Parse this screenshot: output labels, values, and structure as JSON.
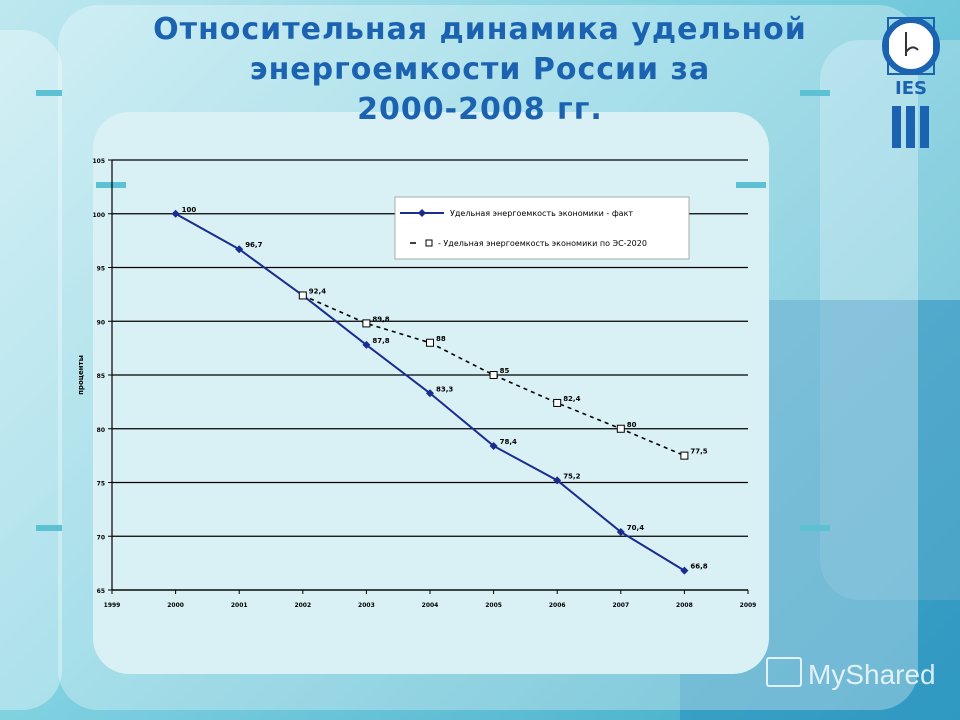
{
  "slide": {
    "title_lines": [
      "Относительная динамика удельной",
      "энергоемкости России за",
      "2000-2008 гг."
    ],
    "logo_text": "IES",
    "watermark": "MyShared"
  },
  "colors": {
    "title": "#1b62b0",
    "series_fact": "#1a2d8f",
    "series_forecast": "#000000"
  },
  "chart_data": {
    "type": "line",
    "ylabel": "проценты",
    "xlim": [
      1999,
      2009
    ],
    "ylim": [
      65,
      105
    ],
    "grid": true,
    "legend_position": "top-right",
    "x_ticks": [
      "1999",
      "2000",
      "2001",
      "2002",
      "2003",
      "2004",
      "2005",
      "2006",
      "2007",
      "2008",
      "2009"
    ],
    "y_ticks": [
      65,
      70,
      75,
      80,
      85,
      90,
      95,
      100,
      105
    ],
    "series": [
      {
        "name": "Удельная энергоемкость экономики - факт",
        "style": "solid",
        "marker": "diamond",
        "x": [
          2000,
          2001,
          2002,
          2003,
          2004,
          2005,
          2006,
          2007,
          2008
        ],
        "values": [
          100,
          96.7,
          92.4,
          87.8,
          83.3,
          78.4,
          75.2,
          70.4,
          66.8
        ],
        "labels": [
          "100",
          "96,7",
          "92,4",
          "87,8",
          "83,3",
          "78,4",
          "75,2",
          "70,4",
          "66,8"
        ]
      },
      {
        "name": "Удельная энергоемкость экономики по ЭС-2020",
        "style": "dashed",
        "marker": "square",
        "x": [
          2002,
          2003,
          2004,
          2005,
          2006,
          2007,
          2008
        ],
        "values": [
          92.4,
          89.8,
          88,
          85,
          82.4,
          80,
          77.5
        ],
        "labels": [
          "",
          "89,8",
          "88",
          "85",
          "82,4",
          "80",
          "77,5"
        ]
      }
    ]
  }
}
